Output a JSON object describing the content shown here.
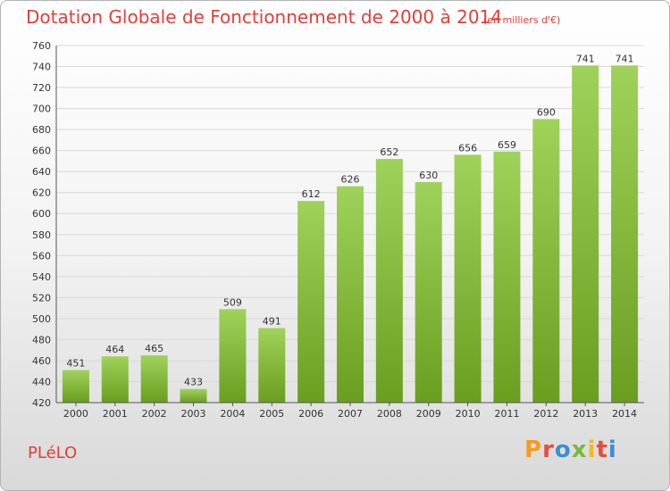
{
  "header": {
    "title": "Dotation Globale de Fonctionnement de 2000 à 2014",
    "unit_note": "(en milliers d'€)"
  },
  "footer": {
    "commune": "PLéLO",
    "logo_text": "Proxiti"
  },
  "colors": {
    "title": "#e0403a",
    "bar_top": "#9fd25a",
    "bar_bottom": "#6a9e1f",
    "grid": "#d8d8d8",
    "axis": "#555555"
  },
  "chart_data": {
    "type": "bar",
    "title": "Dotation Globale de Fonctionnement de 2000 à 2014",
    "subtitle": "(en milliers d'€)",
    "xlabel": "",
    "ylabel": "",
    "categories": [
      "2000",
      "2001",
      "2002",
      "2003",
      "2004",
      "2005",
      "2006",
      "2007",
      "2008",
      "2009",
      "2010",
      "2011",
      "2012",
      "2013",
      "2014"
    ],
    "values": [
      451,
      464,
      465,
      433,
      509,
      491,
      612,
      626,
      652,
      630,
      656,
      659,
      690,
      741,
      741
    ],
    "ylim": [
      420,
      760
    ],
    "yticks": [
      420,
      440,
      460,
      480,
      500,
      520,
      540,
      560,
      580,
      600,
      620,
      640,
      660,
      680,
      700,
      720,
      740,
      760
    ],
    "grid": true,
    "data_labels": true
  }
}
